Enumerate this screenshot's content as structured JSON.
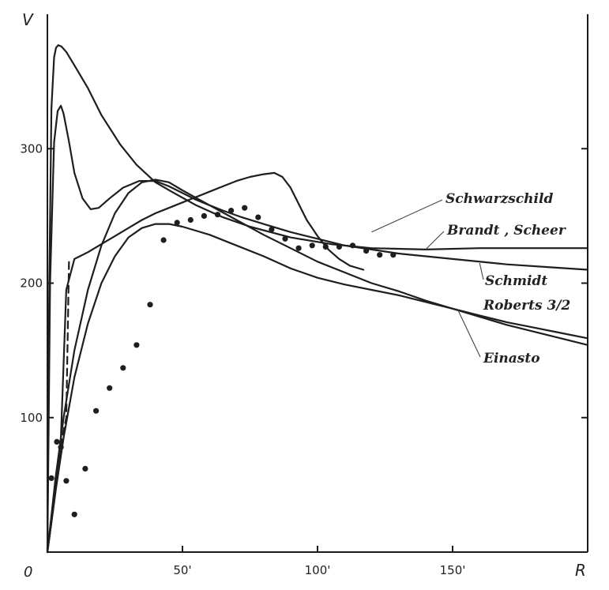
{
  "chart_data": {
    "type": "line",
    "title": "",
    "xlabel": "R",
    "ylabel": "V",
    "origin_label": "0",
    "xlim": [
      0,
      200
    ],
    "ylim": [
      0,
      400
    ],
    "x_ticks": [
      {
        "value": 50,
        "label": "50'"
      },
      {
        "value": 100,
        "label": "100'"
      },
      {
        "value": 150,
        "label": "150'"
      }
    ],
    "y_ticks": [
      {
        "value": 100,
        "label": "100"
      },
      {
        "value": 200,
        "label": "200"
      },
      {
        "value": 300,
        "label": "300"
      }
    ],
    "grid": false,
    "colors": {
      "ink": "#1e1e1e",
      "background": "#ffffff"
    },
    "series": [
      {
        "name": "Schwarzschild",
        "style": "solid",
        "x": [
          0,
          0.7,
          1.5,
          2.5,
          3.2,
          4.0,
          5.2,
          7,
          10,
          15,
          20,
          27,
          33,
          40,
          46,
          55,
          65,
          75,
          90,
          105,
          120,
          140,
          160,
          180,
          200
        ],
        "y": [
          0,
          200,
          330,
          368,
          375,
          377,
          376,
          372,
          362,
          345,
          325,
          303,
          288,
          275,
          268,
          258,
          249,
          242,
          234,
          229,
          226,
          225,
          226,
          226,
          226
        ]
      },
      {
        "name": "Brandt, Scheer",
        "style": "solid",
        "x": [
          0,
          1,
          2.5,
          3.8,
          5,
          6,
          8,
          10,
          13,
          16,
          19,
          23,
          28,
          34,
          40,
          45,
          50,
          55,
          60,
          65,
          72,
          80,
          90,
          100,
          110,
          120,
          130,
          150,
          170,
          185,
          200
        ],
        "y": [
          0,
          200,
          305,
          328,
          332,
          326,
          305,
          282,
          263,
          255,
          256,
          263,
          271,
          276,
          276,
          272,
          267,
          262,
          258,
          254,
          249,
          244,
          238,
          233,
          228,
          225,
          222,
          218,
          214,
          212,
          210
        ]
      },
      {
        "name": "Schmidt",
        "style": "solid",
        "x": [
          0,
          3,
          5,
          7,
          10,
          15,
          20,
          25,
          30,
          35,
          40,
          45,
          50,
          55,
          60,
          65,
          70,
          75,
          80,
          84,
          87,
          90,
          93,
          96,
          100,
          104,
          108,
          112,
          117
        ],
        "y": [
          0,
          45,
          85,
          195,
          218,
          223,
          229,
          235,
          241,
          247,
          252,
          256,
          260,
          264,
          268,
          272,
          276,
          279,
          281,
          282,
          279,
          271,
          259,
          247,
          235,
          225,
          218,
          213,
          210
        ]
      },
      {
        "name": "Roberts 3/2",
        "style": "solid",
        "x": [
          0,
          3,
          6,
          10,
          15,
          20,
          25,
          30,
          35,
          40,
          45,
          50,
          60,
          70,
          80,
          90,
          100,
          110,
          120,
          130,
          140,
          150,
          160,
          170,
          180,
          190,
          200
        ],
        "y": [
          0,
          55,
          100,
          150,
          195,
          228,
          252,
          267,
          275,
          277,
          275,
          269,
          258,
          247,
          236,
          226,
          216,
          208,
          200,
          194,
          187,
          181,
          176,
          171,
          167,
          163,
          159
        ]
      },
      {
        "name": "Einasto",
        "style": "solid",
        "x": [
          0,
          3,
          6,
          10,
          15,
          20,
          25,
          30,
          35,
          40,
          45,
          50,
          60,
          70,
          80,
          90,
          100,
          110,
          120,
          130,
          140,
          150,
          160,
          170,
          180,
          190,
          200
        ],
        "y": [
          0,
          45,
          85,
          130,
          170,
          200,
          220,
          234,
          241,
          244,
          244,
          242,
          236,
          228,
          220,
          211,
          204,
          199,
          195,
          191,
          186,
          181,
          175,
          169,
          164,
          159,
          154
        ]
      },
      {
        "name": "",
        "style": "dashed",
        "x": [
          0,
          2,
          4,
          5,
          7,
          8
        ],
        "y": [
          0,
          30,
          65,
          80,
          100,
          218
        ]
      },
      {
        "name": "",
        "style": "points",
        "x": [
          1.5,
          3.5,
          5,
          7,
          10,
          14,
          18,
          23,
          28,
          33,
          38,
          43,
          48,
          53,
          58,
          63,
          68,
          73,
          78,
          83,
          88,
          93,
          98,
          103,
          108,
          113,
          118,
          123,
          128
        ],
        "y": [
          55,
          82,
          78,
          53,
          28,
          62,
          105,
          122,
          137,
          154,
          184,
          232,
          245,
          247,
          250,
          251,
          254,
          256,
          249,
          240,
          233,
          226,
          228,
          227,
          227,
          228,
          224,
          221,
          221
        ]
      }
    ],
    "annotations": [
      {
        "text": "Schwarzschild",
        "target_series": 0
      },
      {
        "text": "Brandt , Scheer",
        "target_series": 1
      },
      {
        "text": "Schmidt",
        "target_series": 2
      },
      {
        "text": "Roberts 3/2",
        "target_series": 3
      },
      {
        "text": "Einasto",
        "target_series": 4
      }
    ]
  }
}
